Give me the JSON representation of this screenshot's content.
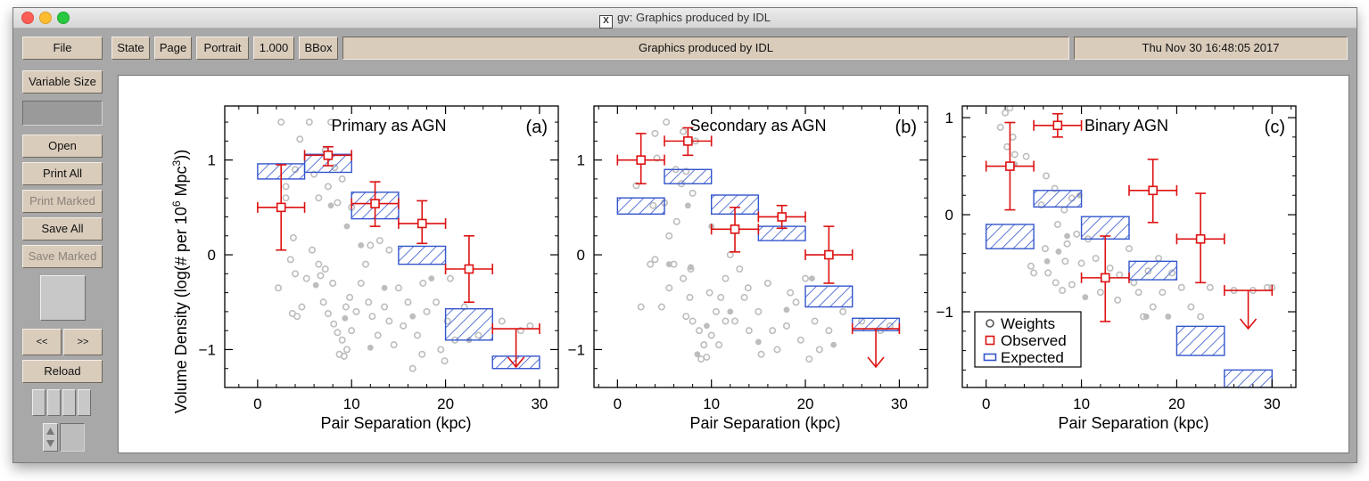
{
  "window": {
    "title": "gv: Graphics produced by IDL",
    "x_icon": "X"
  },
  "toolbar": {
    "file": "File",
    "state": "State",
    "page": "Page",
    "orientation": "Portrait",
    "scale": "1.000",
    "bbox": "BBox",
    "document_title": "Graphics produced by IDL",
    "date": "Thu Nov 30 16:48:05 2017"
  },
  "sidebar": {
    "variable_size": "Variable Size",
    "open": "Open",
    "print_all": "Print All",
    "print_marked": "Print Marked",
    "save_all": "Save All",
    "save_marked": "Save Marked",
    "prev": "<<",
    "next": ">>",
    "reload": "Reload"
  },
  "colors": {
    "observed": "#dd1111",
    "expected": "#3355cc",
    "weights": "#bdbdbd"
  },
  "chart_data": [
    {
      "type": "scatter",
      "title": "Primary as AGN",
      "panel_label": "(a)",
      "xlabel": "Pair Separation (kpc)",
      "ylabel": "Volume Density (log(# per 10^6 Mpc^3))",
      "xlim": [
        -3.5,
        32
      ],
      "ylim": [
        -1.4,
        1.57
      ],
      "xticks": [
        0,
        10,
        20,
        30
      ],
      "yticks": [
        -1,
        0,
        1
      ],
      "ytick_labels": [
        "−1",
        "0",
        "1"
      ],
      "observed": [
        {
          "x": 2.5,
          "y": 0.5,
          "ylo": 0.05,
          "yhi": 0.95,
          "xerr": 2.5
        },
        {
          "x": 7.5,
          "y": 1.05,
          "ylo": 0.94,
          "yhi": 1.14,
          "xerr": 2.5
        },
        {
          "x": 12.5,
          "y": 0.54,
          "ylo": 0.3,
          "yhi": 0.77,
          "xerr": 2.5
        },
        {
          "x": 17.5,
          "y": 0.33,
          "ylo": 0.12,
          "yhi": 0.57,
          "xerr": 2.5
        },
        {
          "x": 22.5,
          "y": -0.15,
          "ylo": -0.5,
          "yhi": 0.2,
          "xerr": 2.5
        }
      ],
      "upper_limits": [
        {
          "x": 27.5,
          "y": -0.78,
          "xerr": 2.5
        }
      ],
      "expected": [
        {
          "x0": 0,
          "x1": 5,
          "ylo": 0.8,
          "yhi": 0.96
        },
        {
          "x0": 5,
          "x1": 10,
          "ylo": 0.87,
          "yhi": 1.06
        },
        {
          "x0": 10,
          "x1": 15,
          "ylo": 0.38,
          "yhi": 0.66
        },
        {
          "x0": 15,
          "x1": 20,
          "ylo": -0.1,
          "yhi": 0.09
        },
        {
          "x0": 20,
          "x1": 25,
          "ylo": -0.9,
          "yhi": -0.57
        },
        {
          "x0": 25,
          "x1": 30,
          "ylo": -1.2,
          "yhi": -1.07
        }
      ],
      "weights": [
        [
          2.5,
          1.4
        ],
        [
          5.5,
          1.4
        ],
        [
          7.8,
          1.4
        ],
        [
          4.5,
          1.22
        ],
        [
          7.2,
          1.1
        ],
        [
          4,
          0.9
        ],
        [
          6,
          0.85
        ],
        [
          8.2,
          0.92
        ],
        [
          9,
          0.8
        ],
        [
          7.5,
          0.72
        ],
        [
          6.5,
          0.6
        ],
        [
          8.5,
          0.55
        ],
        [
          10,
          0.5
        ],
        [
          3,
          0.72
        ],
        [
          3,
          0.6
        ],
        [
          5.8,
          0.05
        ],
        [
          3.8,
          0.18
        ],
        [
          3.5,
          -0.05
        ],
        [
          4,
          -0.2
        ],
        [
          2.2,
          -0.35
        ],
        [
          4.7,
          -0.55
        ],
        [
          4.2,
          -0.65
        ],
        [
          6.5,
          -0.1
        ],
        [
          5.2,
          -0.25
        ],
        [
          7.2,
          -0.15
        ],
        [
          8,
          -0.3
        ],
        [
          7,
          -0.5
        ],
        [
          7.5,
          -0.62
        ],
        [
          8.1,
          -0.73
        ],
        [
          8.5,
          -0.82
        ],
        [
          9,
          -0.9
        ],
        [
          9.5,
          -1
        ],
        [
          8.7,
          -1.05
        ],
        [
          9.2,
          -1.07
        ],
        [
          10,
          -0.8
        ],
        [
          10.5,
          -0.6
        ],
        [
          9.8,
          -0.45
        ],
        [
          11,
          -0.3
        ],
        [
          11.5,
          -0.1
        ],
        [
          12,
          0.1
        ],
        [
          13,
          0.15
        ],
        [
          14,
          0.05
        ],
        [
          11.8,
          -0.5
        ],
        [
          12.2,
          -0.65
        ],
        [
          13.5,
          -0.55
        ],
        [
          14,
          -0.7
        ],
        [
          15,
          -0.35
        ],
        [
          16,
          -0.5
        ],
        [
          15.5,
          -0.75
        ],
        [
          17,
          -0.85
        ],
        [
          18,
          -0.6
        ],
        [
          19,
          -0.5
        ],
        [
          17.5,
          -1.05
        ],
        [
          16.5,
          -1.2
        ],
        [
          19.5,
          -1
        ],
        [
          20.2,
          -0.7
        ],
        [
          21,
          -0.9
        ],
        [
          19.9,
          -1.12
        ],
        [
          20.5,
          -0.25
        ],
        [
          22,
          -0.55
        ],
        [
          23.5,
          -0.85
        ],
        [
          26,
          -0.7
        ],
        [
          28,
          -0.8
        ],
        [
          29,
          -0.75
        ],
        [
          12.8,
          -0.85
        ],
        [
          14.5,
          -0.95
        ],
        [
          17.6,
          -0.3
        ],
        [
          6.7,
          -0.22
        ],
        [
          9.4,
          -0.55
        ],
        [
          3.7,
          -0.62
        ]
      ],
      "weights_filled": [
        [
          7.8,
          0.52
        ],
        [
          9.5,
          0.3
        ],
        [
          6.2,
          -0.32
        ],
        [
          9.3,
          -0.67
        ],
        [
          11,
          0.1
        ],
        [
          13.5,
          -0.35
        ],
        [
          16.5,
          -0.65
        ],
        [
          18.5,
          -0.25
        ],
        [
          12,
          -0.98
        ],
        [
          22.5,
          -0.9
        ]
      ]
    },
    {
      "type": "scatter",
      "title": "Secondary as AGN",
      "panel_label": "(b)",
      "xlabel": "Pair Separation (kpc)",
      "ylabel": "",
      "xlim": [
        -2.5,
        33
      ],
      "ylim": [
        -1.4,
        1.57
      ],
      "xticks": [
        0,
        10,
        20,
        30
      ],
      "yticks": [
        -1,
        0,
        1
      ],
      "ytick_labels": [
        "−1",
        "0",
        "1"
      ],
      "observed": [
        {
          "x": 2.5,
          "y": 1.0,
          "ylo": 0.75,
          "yhi": 1.28,
          "xerr": 2.5
        },
        {
          "x": 7.5,
          "y": 1.2,
          "ylo": 1.05,
          "yhi": 1.34,
          "xerr": 2.5
        },
        {
          "x": 12.5,
          "y": 0.27,
          "ylo": 0.03,
          "yhi": 0.5,
          "xerr": 2.5
        },
        {
          "x": 17.5,
          "y": 0.4,
          "ylo": 0.28,
          "yhi": 0.52,
          "xerr": 2.5
        },
        {
          "x": 22.5,
          "y": 0.0,
          "ylo": -0.3,
          "yhi": 0.3,
          "xerr": 2.5
        }
      ],
      "upper_limits": [
        {
          "x": 27.5,
          "y": -0.78,
          "xerr": 2.5
        }
      ],
      "expected": [
        {
          "x0": 0,
          "x1": 5,
          "ylo": 0.43,
          "yhi": 0.6
        },
        {
          "x0": 5,
          "x1": 10,
          "ylo": 0.75,
          "yhi": 0.9
        },
        {
          "x0": 10,
          "x1": 15,
          "ylo": 0.43,
          "yhi": 0.63
        },
        {
          "x0": 15,
          "x1": 20,
          "ylo": 0.15,
          "yhi": 0.3
        },
        {
          "x0": 20,
          "x1": 25,
          "ylo": -0.55,
          "yhi": -0.33
        },
        {
          "x0": 25,
          "x1": 30,
          "ylo": -0.8,
          "yhi": -0.67
        }
      ],
      "weights": [
        [
          4,
          1.28
        ],
        [
          5.2,
          1.4
        ],
        [
          7,
          1.3
        ],
        [
          8.3,
          1.2
        ],
        [
          4.2,
          1.02
        ],
        [
          6.2,
          0.9
        ],
        [
          7.3,
          0.88
        ],
        [
          6.8,
          0.75
        ],
        [
          8,
          0.65
        ],
        [
          5,
          0.55
        ],
        [
          3.8,
          0.52
        ],
        [
          2,
          0.73
        ],
        [
          5.5,
          0.2
        ],
        [
          4,
          -0.05
        ],
        [
          3.5,
          -0.1
        ],
        [
          5.5,
          -0.35
        ],
        [
          4.7,
          -0.55
        ],
        [
          2.5,
          -0.55
        ],
        [
          6,
          -0.1
        ],
        [
          7,
          -0.25
        ],
        [
          7.7,
          -0.45
        ],
        [
          7.3,
          -0.65
        ],
        [
          8,
          -0.7
        ],
        [
          8.7,
          -0.8
        ],
        [
          9.2,
          -0.95
        ],
        [
          8.9,
          -1.1
        ],
        [
          9.5,
          -1.08
        ],
        [
          10,
          -0.85
        ],
        [
          10.5,
          -0.6
        ],
        [
          11,
          -0.45
        ],
        [
          11.5,
          -0.25
        ],
        [
          12,
          0
        ],
        [
          13,
          -0.15
        ],
        [
          11.5,
          -0.7
        ],
        [
          12.5,
          -0.7
        ],
        [
          13.5,
          -0.45
        ],
        [
          14,
          -0.8
        ],
        [
          15,
          -0.6
        ],
        [
          16,
          -0.3
        ],
        [
          16.5,
          -0.8
        ],
        [
          17,
          -1
        ],
        [
          18,
          -0.75
        ],
        [
          19,
          -0.5
        ],
        [
          19.5,
          -0.9
        ],
        [
          20,
          -0.25
        ],
        [
          21,
          -0.7
        ],
        [
          20.4,
          -1.1
        ],
        [
          21.5,
          -1
        ],
        [
          22.5,
          -0.8
        ],
        [
          24,
          -0.6
        ],
        [
          26,
          -0.7
        ],
        [
          28,
          -0.8
        ],
        [
          29,
          -0.75
        ],
        [
          13.9,
          -0.35
        ],
        [
          6.3,
          0.35
        ],
        [
          10.8,
          -0.95
        ],
        [
          15.3,
          -1.05
        ],
        [
          18.4,
          -0.4
        ],
        [
          9.8,
          -0.4
        ],
        [
          7.8,
          -0.15
        ]
      ],
      "weights_filled": [
        [
          7.5,
          0.52
        ],
        [
          5.5,
          -0.1
        ],
        [
          7.8,
          -0.13
        ],
        [
          9.5,
          -0.75
        ],
        [
          10,
          0.3
        ],
        [
          12,
          -0.6
        ],
        [
          15,
          -0.92
        ],
        [
          18,
          -0.58
        ],
        [
          20.7,
          -0.25
        ],
        [
          23,
          -0.95
        ],
        [
          8.5,
          -1.05
        ]
      ]
    },
    {
      "type": "scatter",
      "title": "Binary AGN",
      "panel_label": "(c)",
      "xlabel": "Pair Separation (kpc)",
      "ylabel": "",
      "xlim": [
        -2.5,
        32.5
      ],
      "ylim": [
        -1.78,
        1.12
      ],
      "xticks": [
        0,
        10,
        20,
        30
      ],
      "yticks": [
        -1,
        0,
        1
      ],
      "ytick_labels": [
        "−1",
        "0",
        "1"
      ],
      "observed": [
        {
          "x": 2.5,
          "y": 0.5,
          "ylo": 0.05,
          "yhi": 0.95,
          "xerr": 2.5
        },
        {
          "x": 7.5,
          "y": 0.92,
          "ylo": 0.8,
          "yhi": 1.04,
          "xerr": 2.5
        },
        {
          "x": 12.5,
          "y": -0.65,
          "ylo": -1.1,
          "yhi": -0.22,
          "xerr": 2.5
        },
        {
          "x": 17.5,
          "y": 0.25,
          "ylo": -0.08,
          "yhi": 0.57,
          "xerr": 2.5
        },
        {
          "x": 22.5,
          "y": -0.25,
          "ylo": -0.7,
          "yhi": 0.22,
          "xerr": 2.5
        }
      ],
      "upper_limits": [
        {
          "x": 27.5,
          "y": -0.78,
          "xerr": 2.5
        }
      ],
      "expected": [
        {
          "x0": 0,
          "x1": 5,
          "ylo": -0.35,
          "yhi": -0.1
        },
        {
          "x0": 5,
          "x1": 10,
          "ylo": 0.08,
          "yhi": 0.25
        },
        {
          "x0": 10,
          "x1": 15,
          "ylo": -0.25,
          "yhi": -0.02
        },
        {
          "x0": 15,
          "x1": 20,
          "ylo": -0.67,
          "yhi": -0.48
        },
        {
          "x0": 20,
          "x1": 25,
          "ylo": -1.45,
          "yhi": -1.15
        },
        {
          "x0": 25,
          "x1": 30,
          "ylo": -1.78,
          "yhi": -1.6
        }
      ],
      "weights": [
        [
          2.5,
          1.1
        ],
        [
          2,
          1.05
        ],
        [
          1.5,
          0.9
        ],
        [
          2.8,
          0.8
        ],
        [
          2.2,
          0.7
        ],
        [
          3,
          0.62
        ],
        [
          4.2,
          0.6
        ],
        [
          6.3,
          0.4
        ],
        [
          7.2,
          0.27
        ],
        [
          9,
          0.17
        ],
        [
          8.2,
          0.05
        ],
        [
          5.8,
          0.1
        ],
        [
          7.5,
          -0.1
        ],
        [
          9.5,
          -0.2
        ],
        [
          8.5,
          -0.3
        ],
        [
          8.3,
          -0.48
        ],
        [
          5,
          -0.6
        ],
        [
          4.7,
          -0.53
        ],
        [
          6.5,
          -0.6
        ],
        [
          7.3,
          -0.7
        ],
        [
          8,
          -0.78
        ],
        [
          9,
          -0.72
        ],
        [
          10,
          -0.5
        ],
        [
          10.7,
          -0.25
        ],
        [
          11.5,
          -0.45
        ],
        [
          12,
          -0.8
        ],
        [
          13,
          -0.55
        ],
        [
          14,
          -0.62
        ],
        [
          15,
          -0.35
        ],
        [
          15.5,
          -0.7
        ],
        [
          16,
          -0.8
        ],
        [
          16.5,
          -1.05
        ],
        [
          17.5,
          -0.95
        ],
        [
          18.5,
          -0.8
        ],
        [
          19.5,
          -0.6
        ],
        [
          20.5,
          -0.75
        ],
        [
          21.5,
          -0.95
        ],
        [
          22.5,
          -1.05
        ],
        [
          23.5,
          -0.75
        ],
        [
          26,
          -0.78
        ],
        [
          28,
          -0.78
        ],
        [
          29.5,
          -0.75
        ],
        [
          30,
          -0.75
        ],
        [
          6.2,
          -0.35
        ],
        [
          13.8,
          -0.88
        ],
        [
          18.1,
          -0.45
        ],
        [
          17,
          -0.58
        ]
      ],
      "weights_filled": [
        [
          3,
          0.52
        ],
        [
          9.8,
          0.2
        ],
        [
          7.6,
          -0.38
        ],
        [
          8.5,
          -0.22
        ],
        [
          10.4,
          -0.85
        ],
        [
          16.8,
          -1.05
        ],
        [
          19.1,
          -1.05
        ],
        [
          6.4,
          -0.48
        ]
      ]
    }
  ],
  "legend": {
    "weights": "Weights",
    "observed": "Observed",
    "expected": "Expected"
  }
}
